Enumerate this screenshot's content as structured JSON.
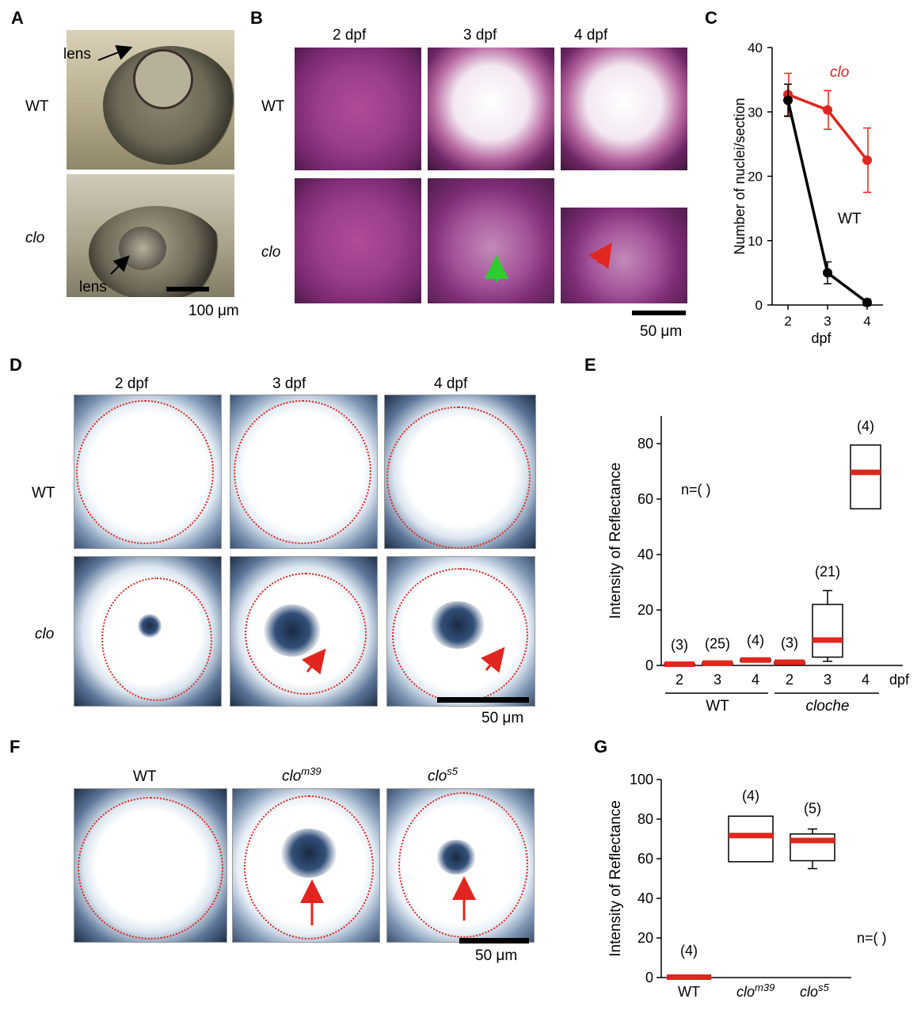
{
  "panels": {
    "A": {
      "label": "A",
      "row_wt": "WT",
      "row_clo": "clo",
      "lens_top": "lens",
      "lens_bottom": "lens",
      "scale": "100 μm"
    },
    "B": {
      "label": "B",
      "cols": [
        "2 dpf",
        "3 dpf",
        "4 dpf"
      ],
      "row_wt": "WT",
      "row_clo": "clo",
      "scale": "50 μm"
    },
    "C": {
      "label": "C",
      "series_clo": "clo",
      "series_wt": "WT",
      "ylabel": "Number of nuclei/section",
      "xlabel": "dpf"
    },
    "D": {
      "label": "D",
      "cols": [
        "2 dpf",
        "3 dpf",
        "4 dpf"
      ],
      "row_wt": "WT",
      "row_clo": "clo",
      "scale": "50 μm"
    },
    "E": {
      "label": "E",
      "ylabel": "Intensity of Reflectance",
      "n_label": "n=( )",
      "group_wt": "WT",
      "group_cloche": "cloche",
      "xunit": "dpf"
    },
    "F": {
      "label": "F",
      "col1": "WT",
      "col2_base": "clo",
      "col2_sup": "m39",
      "col3_base": "clo",
      "col3_sup": "s5",
      "scale": "50 μm"
    },
    "G": {
      "label": "G",
      "ylabel": "Intensity of Reflectance",
      "n_label": "n=( )"
    }
  },
  "chart_data": [
    {
      "id": "C",
      "type": "line",
      "x": [
        2,
        3,
        4
      ],
      "xlabel": "dpf",
      "ylabel": "Number of nuclei/section",
      "ylim": [
        0,
        40
      ],
      "yticks": [
        0,
        10,
        20,
        30,
        40
      ],
      "series": [
        {
          "name": "clo",
          "color": "#e0261e",
          "values": [
            32.7,
            30.3,
            22.5
          ],
          "errors": [
            3.3,
            3.0,
            5.0
          ]
        },
        {
          "name": "WT",
          "color": "#000000",
          "values": [
            31.8,
            5.0,
            0.4
          ],
          "errors": [
            2.5,
            1.7,
            0.5
          ]
        }
      ]
    },
    {
      "id": "E",
      "type": "box",
      "ylabel": "Intensity of Reflectance",
      "ylim": [
        0,
        90
      ],
      "yticks": [
        0,
        20,
        40,
        60,
        80
      ],
      "categories": [
        "2",
        "3",
        "4",
        "2",
        "3",
        "4"
      ],
      "groups": [
        "WT",
        "WT",
        "WT",
        "cloche",
        "cloche",
        "cloche"
      ],
      "n": [
        "(3)",
        "(25)",
        "(4)",
        "(3)",
        "(21)",
        "(4)"
      ],
      "boxes": [
        {
          "median": 0.3,
          "q1": 0.0,
          "q3": 0.6,
          "min": 0.0,
          "max": 0.6
        },
        {
          "median": 0.7,
          "q1": 0.3,
          "q3": 1.0,
          "min": 0.3,
          "max": 1.0
        },
        {
          "median": 1.8,
          "q1": 1.5,
          "q3": 2.2,
          "min": 1.5,
          "max": 2.2
        },
        {
          "median": 1.0,
          "q1": 0.6,
          "q3": 1.3,
          "min": 0.6,
          "max": 1.3
        },
        {
          "median": 9.0,
          "q1": 3.0,
          "q3": 22.0,
          "min": 1.5,
          "max": 27.0
        },
        {
          "median": 69.5,
          "q1": 56.5,
          "q3": 79.5,
          "min": 56.5,
          "max": 79.5
        }
      ],
      "median_color": "#e0261e"
    },
    {
      "id": "G",
      "type": "box",
      "ylabel": "Intensity of Reflectance",
      "ylim": [
        0,
        100
      ],
      "yticks": [
        0,
        20,
        40,
        60,
        80,
        100
      ],
      "categories": [
        "WT",
        "clo m39",
        "clo s5"
      ],
      "n": [
        "(4)",
        "(4)",
        "(5)"
      ],
      "boxes": [
        {
          "median": 0.0,
          "q1": 0.0,
          "q3": 0.0,
          "min": 0.0,
          "max": 0.0
        },
        {
          "median": 71.5,
          "q1": 58.5,
          "q3": 81.5,
          "min": 58.5,
          "max": 81.5
        },
        {
          "median": 69.0,
          "q1": 59.0,
          "q3": 72.5,
          "min": 55.0,
          "max": 75.0
        }
      ],
      "median_color": "#e0261e"
    }
  ]
}
